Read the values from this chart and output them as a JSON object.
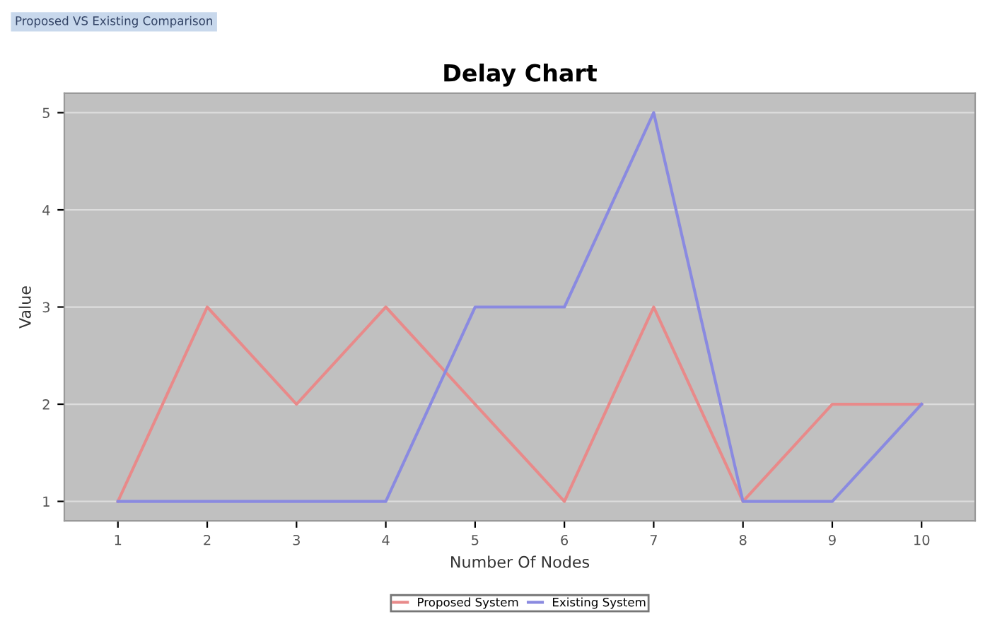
{
  "chart_data": {
    "type": "line",
    "title": "Delay Chart",
    "xlabel": "Number Of Nodes",
    "ylabel": "Value",
    "annotations": [
      "Proposed VS Existing Comparison"
    ],
    "categories": [
      "1",
      "2",
      "3",
      "4",
      "5",
      "6",
      "7",
      "8",
      "9",
      "10"
    ],
    "series": [
      {
        "name": "Proposed System",
        "color": "#e88a8a",
        "values": [
          1,
          3,
          2,
          3,
          2,
          1,
          3,
          1,
          2,
          2
        ]
      },
      {
        "name": "Existing System",
        "color": "#8a8ae0",
        "values": [
          1,
          1,
          1,
          1,
          3,
          3,
          5,
          1,
          1,
          2
        ]
      }
    ],
    "ylim": [
      0.8,
      5.2
    ],
    "yticks": [
      1,
      2,
      3,
      4,
      5
    ],
    "grid": "y",
    "legend": "bottom",
    "marker": "none",
    "line_style": "solid"
  }
}
